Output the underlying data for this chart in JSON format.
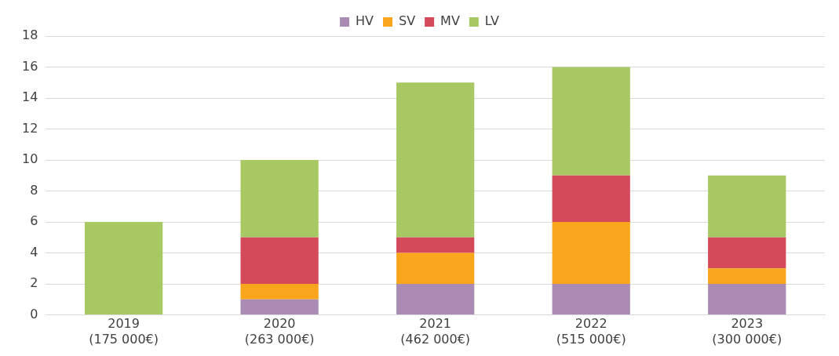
{
  "chart_data": {
    "type": "bar",
    "stacked": true,
    "categories": [
      "2019\n(175 000€)",
      "2020\n(263 000€)",
      "2021\n(462 000€)",
      "2022\n(515 000€)",
      "2023\n(300 000€)"
    ],
    "series": [
      {
        "name": "HV",
        "color": "#a98bb3",
        "values": [
          0,
          1,
          2,
          2,
          2
        ]
      },
      {
        "name": "SV",
        "color": "#f9a61d",
        "values": [
          0,
          1,
          2,
          4,
          1
        ]
      },
      {
        "name": "MV",
        "color": "#d44a5b",
        "values": [
          0,
          3,
          1,
          3,
          2
        ]
      },
      {
        "name": "LV",
        "color": "#a8c864",
        "values": [
          6,
          5,
          10,
          7,
          4
        ]
      }
    ],
    "ylim": [
      0,
      18
    ],
    "yticks": [
      0,
      2,
      4,
      6,
      8,
      10,
      12,
      14,
      16,
      18
    ],
    "grid": "y",
    "legend": "top"
  }
}
